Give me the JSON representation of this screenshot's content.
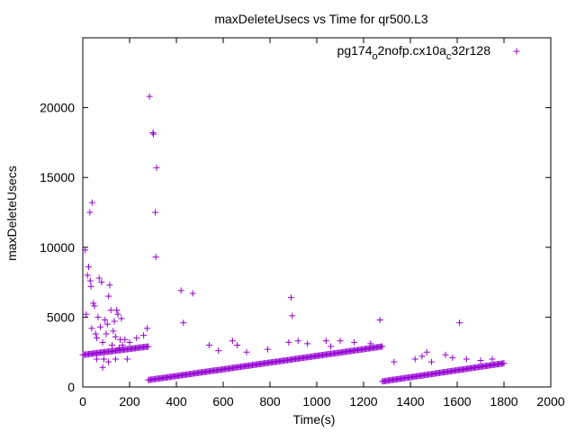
{
  "chart_data": {
    "type": "scatter",
    "title": "maxDeleteUsecs vs Time for qr500.L3",
    "xlabel": "Time(s)",
    "ylabel": "maxDeleteUsecs",
    "xlim": [
      0,
      2000
    ],
    "ylim": [
      0,
      25000
    ],
    "x_ticks": [
      0,
      200,
      400,
      600,
      800,
      1000,
      1200,
      1400,
      1600,
      1800,
      2000
    ],
    "y_ticks": [
      0,
      5000,
      10000,
      15000,
      20000
    ],
    "grid": false,
    "legend_position": "top-right",
    "marker": "+",
    "series": [
      {
        "name_parts": [
          "pg174",
          "o",
          "2nofp.cx10a",
          "c",
          "32r128"
        ],
        "color": "#9400d3",
        "segments": [
          {
            "x_start": 0,
            "x_end": 280,
            "y_start": 2300,
            "y_end": 2900
          },
          {
            "x_start": 280,
            "x_end": 1280,
            "y_start": 500,
            "y_end": 2900
          },
          {
            "x_start": 1280,
            "x_end": 1800,
            "y_start": 400,
            "y_end": 1700
          }
        ],
        "points": [
          [
            10,
            9800
          ],
          [
            15,
            5200
          ],
          [
            20,
            8000
          ],
          [
            25,
            8600
          ],
          [
            30,
            12500
          ],
          [
            32,
            7600
          ],
          [
            35,
            7200
          ],
          [
            38,
            4200
          ],
          [
            40,
            13200
          ],
          [
            45,
            6000
          ],
          [
            50,
            5800
          ],
          [
            55,
            3800
          ],
          [
            60,
            3500
          ],
          [
            65,
            5000
          ],
          [
            70,
            7800
          ],
          [
            75,
            4300
          ],
          [
            80,
            7500
          ],
          [
            85,
            3200
          ],
          [
            90,
            2000
          ],
          [
            95,
            4800
          ],
          [
            100,
            3800
          ],
          [
            105,
            4500
          ],
          [
            110,
            6500
          ],
          [
            115,
            7300
          ],
          [
            120,
            5500
          ],
          [
            125,
            3000
          ],
          [
            130,
            4000
          ],
          [
            135,
            4700
          ],
          [
            140,
            3600
          ],
          [
            145,
            5500
          ],
          [
            150,
            5200
          ],
          [
            155,
            2800
          ],
          [
            160,
            3400
          ],
          [
            165,
            4900
          ],
          [
            170,
            3000
          ],
          [
            180,
            3400
          ],
          [
            200,
            3200
          ],
          [
            230,
            3500
          ],
          [
            260,
            3700
          ],
          [
            275,
            4200
          ],
          [
            85,
            1400
          ],
          [
            110,
            1800
          ],
          [
            60,
            2000
          ],
          [
            140,
            2000
          ],
          [
            190,
            2000
          ],
          [
            285,
            20800
          ],
          [
            300,
            18200
          ],
          [
            302,
            18100
          ],
          [
            310,
            12500
          ],
          [
            312,
            9300
          ],
          [
            315,
            15700
          ],
          [
            420,
            6900
          ],
          [
            430,
            4600
          ],
          [
            470,
            6700
          ],
          [
            540,
            3000
          ],
          [
            580,
            2600
          ],
          [
            640,
            3300
          ],
          [
            660,
            3000
          ],
          [
            700,
            2500
          ],
          [
            790,
            2700
          ],
          [
            880,
            3200
          ],
          [
            890,
            6400
          ],
          [
            895,
            5100
          ],
          [
            920,
            3300
          ],
          [
            960,
            3100
          ],
          [
            1040,
            3300
          ],
          [
            1060,
            2900
          ],
          [
            1100,
            3300
          ],
          [
            1160,
            3200
          ],
          [
            1230,
            3100
          ],
          [
            1270,
            4800
          ],
          [
            1330,
            1800
          ],
          [
            1420,
            2000
          ],
          [
            1450,
            2200
          ],
          [
            1470,
            2500
          ],
          [
            1490,
            1800
          ],
          [
            1550,
            2300
          ],
          [
            1580,
            2100
          ],
          [
            1610,
            4600
          ],
          [
            1640,
            2000
          ],
          [
            1700,
            1900
          ],
          [
            1750,
            2000
          ]
        ]
      }
    ]
  }
}
